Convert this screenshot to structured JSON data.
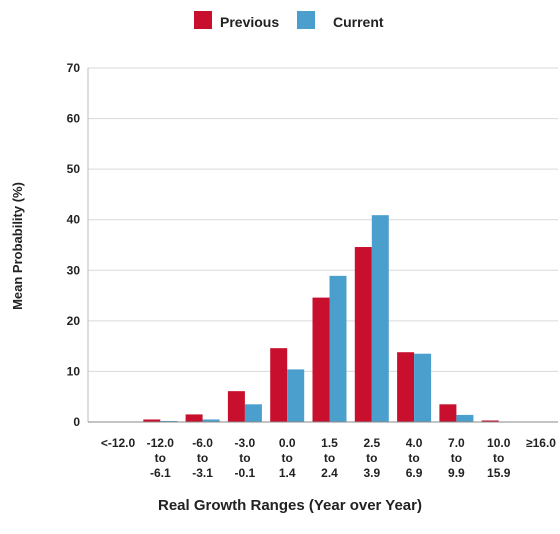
{
  "chart_data": {
    "type": "bar",
    "xlabel": "Real Growth Ranges (Year over Year)",
    "ylabel": "Mean Probability (%)",
    "ylim": [
      0,
      70
    ],
    "yticks": [
      "0",
      "10",
      "20",
      "30",
      "40",
      "50",
      "60",
      "70"
    ],
    "grid": true,
    "legend_position": "top-center",
    "categories": [
      [
        "<-12.0"
      ],
      [
        "-12.0",
        "to",
        "-6.1"
      ],
      [
        "-6.0",
        "to",
        "-3.1"
      ],
      [
        "-3.0",
        "to",
        "-0.1"
      ],
      [
        "0.0",
        "to",
        "1.4"
      ],
      [
        "1.5",
        "to",
        "2.4"
      ],
      [
        "2.5",
        "to",
        "3.9"
      ],
      [
        "4.0",
        "to",
        "6.9"
      ],
      [
        "7.0",
        "to",
        "9.9"
      ],
      [
        "10.0",
        "to",
        "15.9"
      ],
      [
        "≥16.0"
      ]
    ],
    "series": [
      {
        "name": "Previous",
        "color": "#c8102e",
        "values": [
          0,
          0.5,
          1.5,
          6.1,
          14.6,
          24.6,
          34.6,
          13.8,
          3.5,
          0.3,
          0
        ]
      },
      {
        "name": "Current",
        "color": "#4a9fcd",
        "values": [
          0,
          0.2,
          0.5,
          3.5,
          10.4,
          28.9,
          40.9,
          13.5,
          1.4,
          0.1,
          0
        ]
      }
    ]
  }
}
